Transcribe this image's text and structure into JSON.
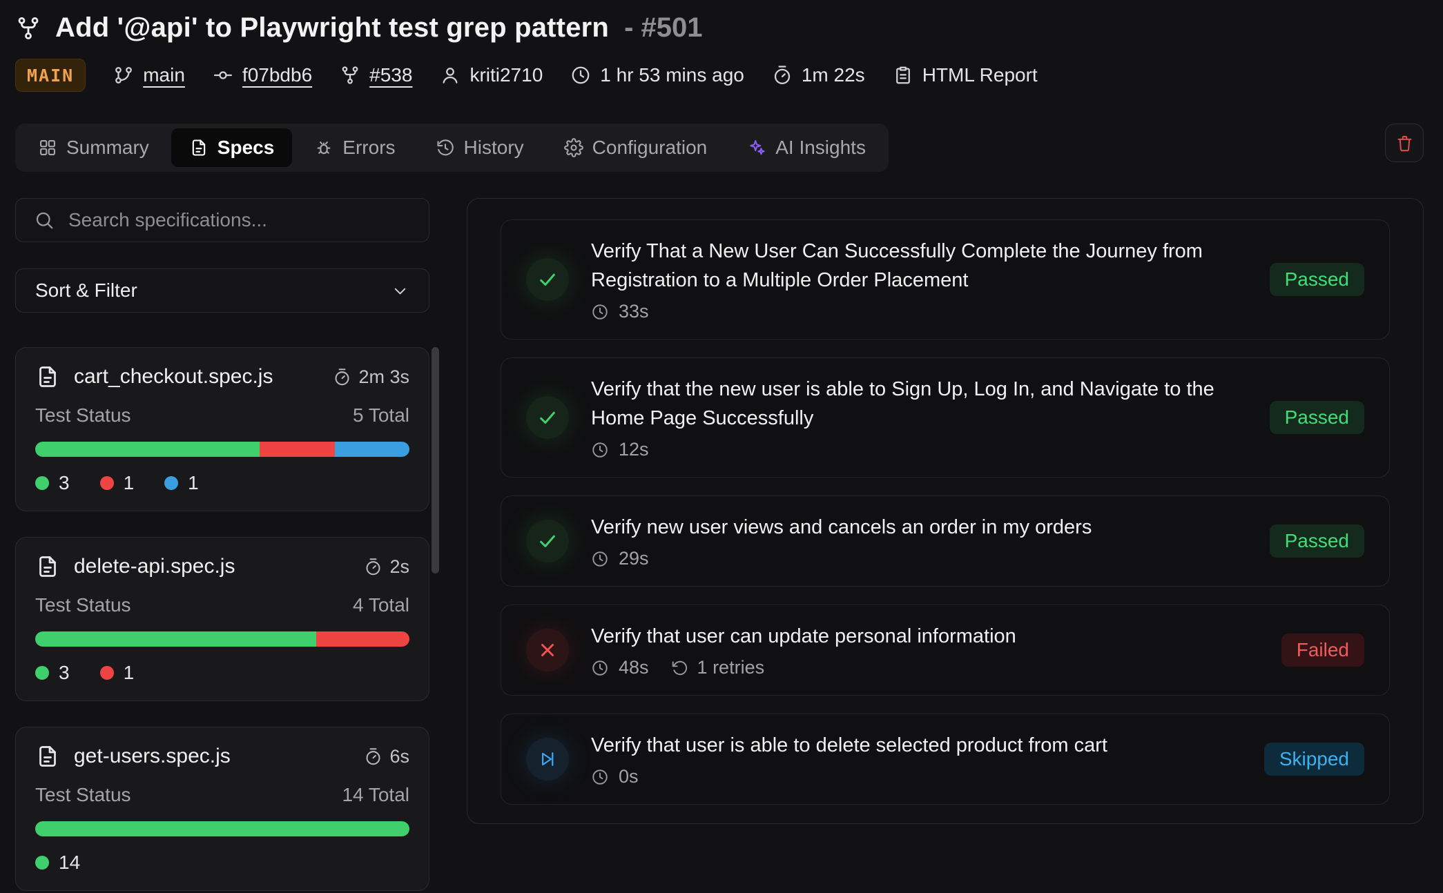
{
  "colors": {
    "accent_orange": "#f0a251",
    "accent_purple": "#8b5cf6",
    "accent_red_delete": "#e5484d",
    "status_colors": {
      "passed": "#3fcf6d",
      "failed": "#ef4444",
      "skipped": "#3b9ee0"
    }
  },
  "header": {
    "icon": "fork-icon",
    "title": "Add '@api' to Playwright test grep pattern",
    "run_id": "- #501",
    "branch_badge": "MAIN",
    "meta": [
      {
        "name": "branch-link",
        "icon": "git-branch-icon",
        "label": "main",
        "underline": true,
        "interactable": true
      },
      {
        "name": "commit-link",
        "icon": "git-commit-icon",
        "label": "f07bdb6",
        "underline": true,
        "interactable": true
      },
      {
        "name": "pull-request-link",
        "icon": "pull-request-icon",
        "label": "#538",
        "underline": true,
        "interactable": true
      },
      {
        "name": "author",
        "icon": "user-icon",
        "label": "kriti2710",
        "underline": false,
        "interactable": false
      },
      {
        "name": "run-time",
        "icon": "clock-icon",
        "label": "1 hr 53 mins ago",
        "underline": false,
        "interactable": false
      },
      {
        "name": "run-duration",
        "icon": "stopwatch-icon",
        "label": "1m 22s",
        "underline": false,
        "interactable": false
      },
      {
        "name": "html-report-link",
        "icon": "report-icon",
        "label": "HTML Report",
        "underline": false,
        "interactable": true
      }
    ]
  },
  "tabs": [
    {
      "icon": "grid-icon",
      "label": "Summary",
      "active": false,
      "accent": false
    },
    {
      "icon": "file-icon",
      "label": "Specs",
      "active": true,
      "accent": false
    },
    {
      "icon": "bug-icon",
      "label": "Errors",
      "active": false,
      "accent": false
    },
    {
      "icon": "history-icon",
      "label": "History",
      "active": false,
      "accent": false
    },
    {
      "icon": "gear-icon",
      "label": "Configuration",
      "active": false,
      "accent": false
    },
    {
      "icon": "sparkles-icon",
      "label": "AI Insights",
      "active": false,
      "accent": true
    }
  ],
  "toolbar": {
    "delete_icon": "trash-icon"
  },
  "sidebar": {
    "search_placeholder": "Search specifications...",
    "sort_filter_label": "Sort & Filter",
    "status_label": "Test Status",
    "specs": [
      {
        "file": "cart_checkout.spec.js",
        "duration": "2m 3s",
        "total": "5 Total",
        "segments": [
          {
            "status": "passed",
            "count": 3
          },
          {
            "status": "failed",
            "count": 1
          },
          {
            "status": "skipped",
            "count": 1
          }
        ]
      },
      {
        "file": "delete-api.spec.js",
        "duration": "2s",
        "total": "4 Total",
        "segments": [
          {
            "status": "passed",
            "count": 3
          },
          {
            "status": "failed",
            "count": 1
          }
        ]
      },
      {
        "file": "get-users.spec.js",
        "duration": "6s",
        "total": "14 Total",
        "segments": [
          {
            "status": "passed",
            "count": 14
          }
        ]
      }
    ]
  },
  "results": [
    {
      "title": "Verify That a New User Can Successfully Complete the Journey from Registration to a Multiple Order Placement",
      "duration": "33s",
      "retries": null,
      "status": "Passed",
      "status_key": "passed"
    },
    {
      "title": "Verify that the new user is able to Sign Up, Log In, and Navigate to the Home Page Successfully",
      "duration": "12s",
      "retries": null,
      "status": "Passed",
      "status_key": "passed"
    },
    {
      "title": "Verify new user views and cancels an order in my orders",
      "duration": "29s",
      "retries": null,
      "status": "Passed",
      "status_key": "passed"
    },
    {
      "title": "Verify that user can update personal information",
      "duration": "48s",
      "retries": "1 retries",
      "status": "Failed",
      "status_key": "failed"
    },
    {
      "title": "Verify that user is able to delete selected product from cart",
      "duration": "0s",
      "retries": null,
      "status": "Skipped",
      "status_key": "skipped"
    }
  ]
}
